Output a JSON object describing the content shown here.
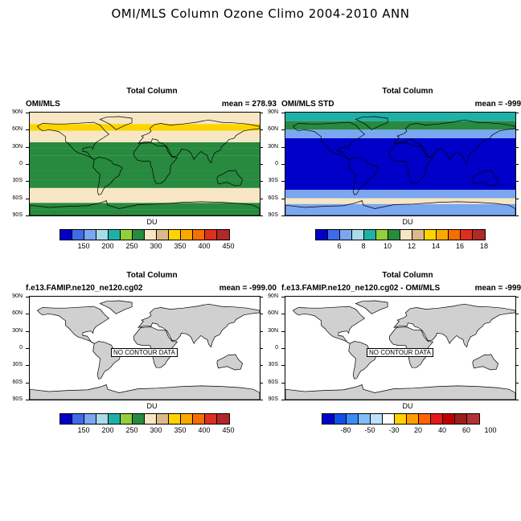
{
  "main_title": "OMI/MLS Column Ozone Climo 2004-2010 ANN",
  "lat_labels": [
    "90N",
    "60N",
    "30N",
    "0",
    "30S",
    "60S",
    "90S"
  ],
  "no_contour_text": "NO CONTOUR DATA",
  "colors": {
    "ozone": [
      "#0000c8",
      "#3e6be8",
      "#7ba6f0",
      "#a9dbe8",
      "#1fb0a8",
      "#93cf3a",
      "#278a3e",
      "#f7e6c3",
      "#dbb98a",
      "#fdd400",
      "#fba800",
      "#f56e00",
      "#dc2f20",
      "#b02828"
    ],
    "std": [
      "#0000c8",
      "#3e6be8",
      "#7ba6f0",
      "#a9dbe8",
      "#1fb0a8",
      "#93cf3a",
      "#278a3e",
      "#f7e6c3",
      "#dbb98a",
      "#fdd400",
      "#fba800",
      "#f56e00",
      "#dc2f20",
      "#b02828"
    ],
    "diff": [
      "#0000c8",
      "#1050e6",
      "#3c8cf5",
      "#82bef8",
      "#bee0fa",
      "#ffffff",
      "#ffd200",
      "#ffa000",
      "#ff6400",
      "#e41a1a",
      "#c00000",
      "#9c1e1e",
      "#b43232"
    ]
  },
  "panels": [
    {
      "title": "Total Column",
      "left": "OMI/MLS",
      "right": "mean = 278.93",
      "colorbar_label": "DU",
      "colorbar_ticks": [
        "150",
        "200",
        "250",
        "300",
        "350",
        "400",
        "450"
      ]
    },
    {
      "title": "Total Column",
      "left": "OMI/MLS STD",
      "right": "mean = -999.00",
      "colorbar_label": "DU",
      "colorbar_ticks": [
        "6",
        "8",
        "10",
        "12",
        "14",
        "16",
        "18"
      ]
    },
    {
      "title": "Total Column",
      "left": "f.e13.FAMIP.ne120_ne120.cg02",
      "right": "mean = -999.00",
      "colorbar_label": "DU",
      "colorbar_ticks": [
        "150",
        "200",
        "250",
        "300",
        "350",
        "400",
        "450"
      ]
    },
    {
      "title": "Total Column",
      "left": "f.e13.FAMIP.ne120_ne120.cg02 - OMI/MLS",
      "right": "mean = -999.00",
      "colorbar_label": "DU",
      "colorbar_ticks": [
        "-80",
        "-50",
        "-30",
        "20",
        "40",
        "60",
        "100"
      ]
    }
  ],
  "chart_data": [
    {
      "type": "heatmap",
      "title": "Total Column",
      "subtitle": "OMI/MLS",
      "mean": 278.93,
      "units": "DU",
      "zonal_bands": [
        {
          "lat_range": [
            90,
            80
          ],
          "value": 300
        },
        {
          "lat_range": [
            80,
            70
          ],
          "value": 310
        },
        {
          "lat_range": [
            70,
            58
          ],
          "value": 375
        },
        {
          "lat_range": [
            58,
            48
          ],
          "value": 340
        },
        {
          "lat_range": [
            48,
            38
          ],
          "value": 310
        },
        {
          "lat_range": [
            38,
            28
          ],
          "value": 280
        },
        {
          "lat_range": [
            28,
            15
          ],
          "value": 270
        },
        {
          "lat_range": [
            15,
            -12
          ],
          "value": 255
        },
        {
          "lat_range": [
            -12,
            -28
          ],
          "value": 270
        },
        {
          "lat_range": [
            -28,
            -42
          ],
          "value": 285
        },
        {
          "lat_range": [
            -42,
            -55
          ],
          "value": 310
        },
        {
          "lat_range": [
            -55,
            -68
          ],
          "value": 330
        },
        {
          "lat_range": [
            -68,
            -80
          ],
          "value": 290
        },
        {
          "lat_range": [
            -80,
            -90
          ],
          "value": 280
        }
      ],
      "colorbar_ticks": [
        150,
        200,
        250,
        300,
        350,
        400,
        450
      ]
    },
    {
      "type": "heatmap",
      "title": "Total Column",
      "subtitle": "OMI/MLS STD",
      "mean": -999.0,
      "units": "DU",
      "zonal_bands": [
        {
          "lat_range": [
            90,
            75
          ],
          "value": 9
        },
        {
          "lat_range": [
            75,
            60
          ],
          "value": 11
        },
        {
          "lat_range": [
            60,
            45
          ],
          "value": 7
        },
        {
          "lat_range": [
            45,
            -45
          ],
          "value": 5
        },
        {
          "lat_range": [
            -45,
            -60
          ],
          "value": 7
        },
        {
          "lat_range": [
            -60,
            -70
          ],
          "value": 12
        },
        {
          "lat_range": [
            -70,
            -90
          ],
          "value": 6
        }
      ],
      "colorbar_ticks": [
        6,
        8,
        10,
        12,
        14,
        16,
        18
      ]
    },
    {
      "type": "heatmap",
      "title": "Total Column",
      "subtitle": "f.e13.FAMIP.ne120_ne120.cg02",
      "mean": -999.0,
      "units": "DU",
      "note": "NO CONTOUR DATA",
      "colorbar_ticks": [
        150,
        200,
        250,
        300,
        350,
        400,
        450
      ]
    },
    {
      "type": "heatmap",
      "title": "Total Column",
      "subtitle": "f.e13.FAMIP.ne120_ne120.cg02 - OMI/MLS",
      "mean": -999.0,
      "units": "DU",
      "note": "NO CONTOUR DATA",
      "colorbar_ticks": [
        -80,
        -50,
        -30,
        20,
        40,
        60,
        100
      ]
    }
  ]
}
